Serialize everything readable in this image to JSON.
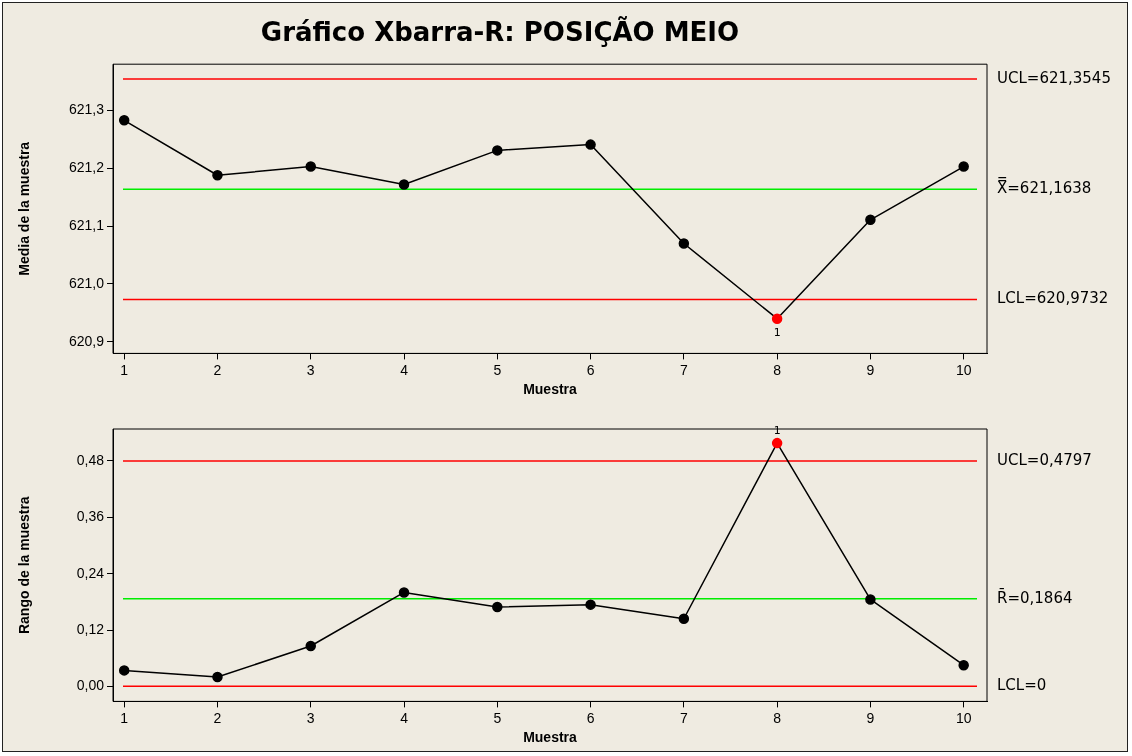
{
  "chart_data": [
    {
      "type": "line",
      "title": "Gráfico Xbarra-R: POSIÇÃO MEIO",
      "xlabel": "Muestra",
      "ylabel": "Media de la muestra",
      "x": [
        1,
        2,
        3,
        4,
        5,
        6,
        7,
        8,
        9,
        10
      ],
      "series": [
        {
          "color": "#000000",
          "colors": [
            "#000000",
            "#000000",
            "#000000",
            "#000000",
            "#000000",
            "#000000",
            "#000000",
            "#ff0000",
            "#000000",
            "#000000"
          ],
          "values": [
            621.283,
            621.188,
            621.203,
            621.172,
            621.231,
            621.241,
            621.07,
            620.94,
            621.111,
            621.203
          ]
        }
      ],
      "xlim": [
        0.88,
        10.25
      ],
      "xticks": [
        1,
        2,
        3,
        4,
        5,
        6,
        7,
        8,
        9,
        10
      ],
      "ylim": [
        620.88,
        621.38
      ],
      "yticks": [
        {
          "value": 620.9,
          "label": "620,9"
        },
        {
          "value": 621.0,
          "label": "621,0"
        },
        {
          "value": 621.1,
          "label": "621,1"
        },
        {
          "value": 621.2,
          "label": "621,2"
        },
        {
          "value": 621.3,
          "label": "621,3"
        }
      ],
      "ref_lines": [
        {
          "axis": "y",
          "value": 621.3545,
          "label": "UCL=621,3545",
          "color": "#ff0000"
        },
        {
          "axis": "y",
          "value": 621.1638,
          "label": "X̿=621,1638",
          "color": "#00ee00"
        },
        {
          "axis": "y",
          "value": 620.9732,
          "label": "LCL=620,9732",
          "color": "#ff0000"
        }
      ],
      "annotations": [
        {
          "text": "1",
          "x": 8,
          "y": 620.94
        }
      ],
      "marker": "circle",
      "grid": false,
      "legend": false
    },
    {
      "type": "line",
      "xlabel": "Muestra",
      "ylabel": "Rango de la muestra",
      "x": [
        1,
        2,
        3,
        4,
        5,
        6,
        7,
        8,
        9,
        10
      ],
      "series": [
        {
          "color": "#000000",
          "colors": [
            "#000000",
            "#000000",
            "#000000",
            "#000000",
            "#000000",
            "#000000",
            "#000000",
            "#ff0000",
            "#000000",
            "#000000"
          ],
          "values": [
            0.034,
            0.02,
            0.086,
            0.2,
            0.169,
            0.174,
            0.144,
            0.518,
            0.185,
            0.045
          ]
        }
      ],
      "xlim": [
        0.88,
        10.25
      ],
      "xticks": [
        1,
        2,
        3,
        4,
        5,
        6,
        7,
        8,
        9,
        10
      ],
      "ylim": [
        -0.032,
        0.548
      ],
      "yticks": [
        {
          "value": 0,
          "label": "0,00"
        },
        {
          "value": 0.12,
          "label": "0,12"
        },
        {
          "value": 0.24,
          "label": "0,24"
        },
        {
          "value": 0.36,
          "label": "0,36"
        },
        {
          "value": 0.48,
          "label": "0,48"
        }
      ],
      "ref_lines": [
        {
          "axis": "y",
          "value": 0.4797,
          "label": "UCL=0,4797",
          "color": "#ff0000"
        },
        {
          "axis": "y",
          "value": 0.1864,
          "label": "R̄=0,1864",
          "color": "#00ee00"
        },
        {
          "axis": "y",
          "value": 0,
          "label": "LCL=0",
          "color": "#ff0000"
        }
      ],
      "annotations": [
        {
          "text": "1",
          "x": 8,
          "y": 0.518
        }
      ],
      "marker": "circle",
      "grid": false,
      "legend": false
    }
  ]
}
